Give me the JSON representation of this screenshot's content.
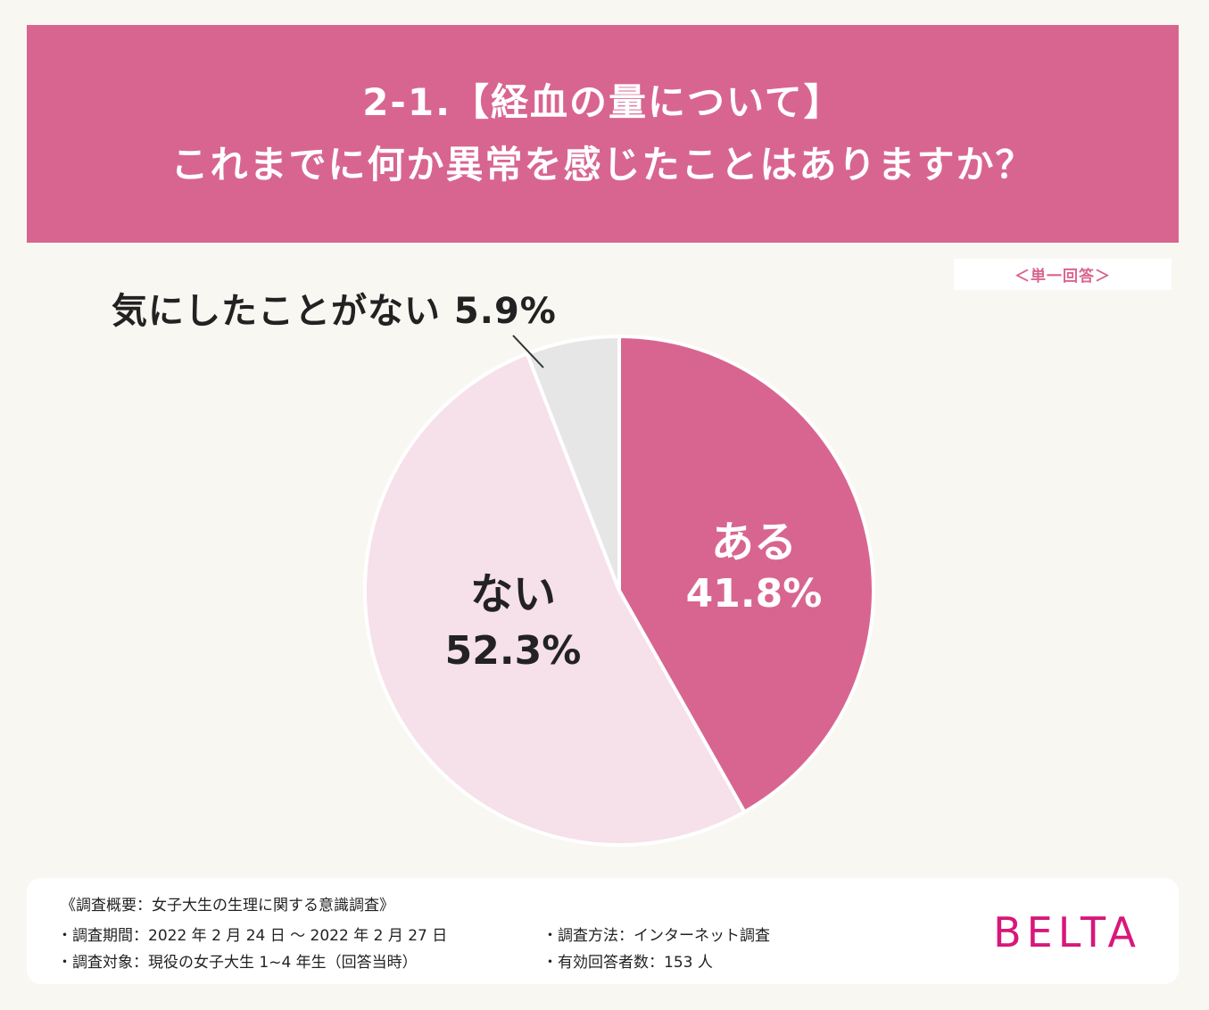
{
  "header": {
    "line1": "2-1.【経血の量について】",
    "line2": "これまでに何か異常を感じたことはありますか？"
  },
  "answer_type": "＜単一回答＞",
  "colors": {
    "aru": "#d86590",
    "nai": "#f6e0e9",
    "kinishita": "#e6e6e6",
    "header": "#d86590",
    "brand": "#d8177a"
  },
  "chart_data": {
    "type": "pie",
    "title": "これまでに何か異常を感じたことはありますか？",
    "categories": [
      "ある",
      "ない",
      "気にしたことがない"
    ],
    "values": [
      41.8,
      52.3,
      5.9
    ],
    "unit": "%",
    "labels": {
      "aru_name": "ある",
      "aru_pct": "41.8%",
      "nai_name": "ない",
      "nai_pct": "52.3%",
      "kinishita": "気にしたことがない 5.9%"
    }
  },
  "footer": {
    "title": "《調査概要：女子大生の生理に関する意識調査》",
    "period": "・調査期間：2022 年 2 月 24 日 〜 2022 年 2 月 27 日",
    "target": "・調査対象：現役の女子大生 1~4 年生（回答当時）",
    "method": "・調査方法：インターネット調査",
    "respondents": "・有効回答者数：153 人",
    "brand": "BELTA"
  }
}
